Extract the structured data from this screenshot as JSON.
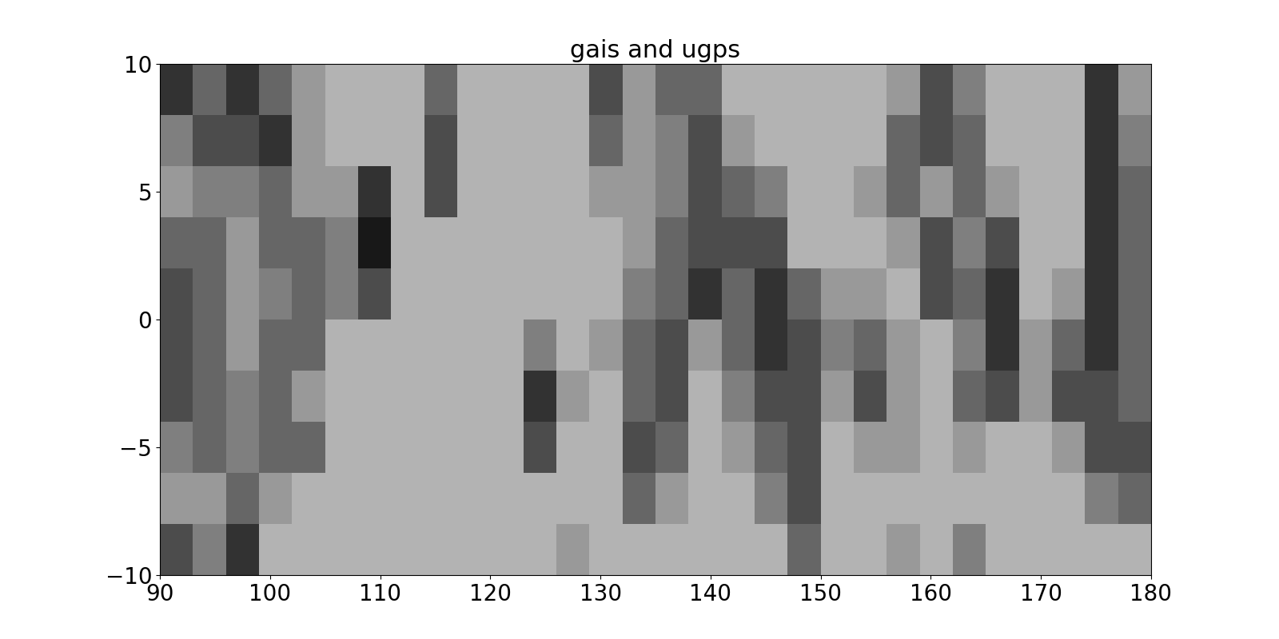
{
  "chart_data": {
    "type": "heatmap",
    "title": "gais and ugps",
    "xlim": [
      90,
      180
    ],
    "ylim": [
      -10,
      10
    ],
    "xticks": [
      90,
      100,
      110,
      120,
      130,
      140,
      150,
      160,
      170,
      180
    ],
    "yticks": [
      {
        "value": -10,
        "label": "−10"
      },
      {
        "value": -5,
        "label": "−5"
      },
      0,
      5,
      10
    ],
    "cell_range": [
      0,
      1
    ],
    "cells": [
      [
        0.8,
        0.6,
        0.8,
        0.6,
        0.4,
        0.3,
        0.3,
        0.3,
        0.6,
        0.3,
        0.3,
        0.3,
        0.3,
        0.7,
        0.4,
        0.6,
        0.6,
        0.3,
        0.3,
        0.3,
        0.3,
        0.3,
        0.4,
        0.7,
        0.5,
        0.3,
        0.3,
        0.3,
        0.8,
        0.4
      ],
      [
        0.5,
        0.7,
        0.7,
        0.8,
        0.4,
        0.3,
        0.3,
        0.3,
        0.7,
        0.3,
        0.3,
        0.3,
        0.3,
        0.6,
        0.4,
        0.5,
        0.7,
        0.4,
        0.3,
        0.3,
        0.3,
        0.3,
        0.6,
        0.7,
        0.6,
        0.3,
        0.3,
        0.3,
        0.8,
        0.5
      ],
      [
        0.4,
        0.5,
        0.5,
        0.6,
        0.4,
        0.4,
        0.8,
        0.3,
        0.7,
        0.3,
        0.3,
        0.3,
        0.3,
        0.4,
        0.4,
        0.5,
        0.7,
        0.6,
        0.5,
        0.3,
        0.3,
        0.4,
        0.6,
        0.4,
        0.6,
        0.4,
        0.3,
        0.3,
        0.8,
        0.6
      ],
      [
        0.6,
        0.6,
        0.4,
        0.6,
        0.6,
        0.5,
        0.9,
        0.3,
        0.3,
        0.3,
        0.3,
        0.3,
        0.3,
        0.3,
        0.4,
        0.6,
        0.7,
        0.7,
        0.7,
        0.3,
        0.3,
        0.3,
        0.4,
        0.7,
        0.5,
        0.7,
        0.3,
        0.3,
        0.8,
        0.6
      ],
      [
        0.7,
        0.6,
        0.4,
        0.5,
        0.6,
        0.5,
        0.7,
        0.3,
        0.3,
        0.3,
        0.3,
        0.3,
        0.3,
        0.3,
        0.5,
        0.6,
        0.8,
        0.6,
        0.8,
        0.6,
        0.4,
        0.4,
        0.3,
        0.7,
        0.6,
        0.8,
        0.3,
        0.4,
        0.8,
        0.6
      ],
      [
        0.7,
        0.6,
        0.4,
        0.6,
        0.6,
        0.3,
        0.3,
        0.3,
        0.3,
        0.3,
        0.3,
        0.5,
        0.3,
        0.4,
        0.6,
        0.7,
        0.4,
        0.6,
        0.8,
        0.7,
        0.5,
        0.6,
        0.4,
        0.3,
        0.5,
        0.8,
        0.4,
        0.6,
        0.8,
        0.6
      ],
      [
        0.7,
        0.6,
        0.5,
        0.6,
        0.4,
        0.3,
        0.3,
        0.3,
        0.3,
        0.3,
        0.3,
        0.8,
        0.4,
        0.3,
        0.6,
        0.7,
        0.3,
        0.5,
        0.7,
        0.7,
        0.4,
        0.7,
        0.4,
        0.3,
        0.6,
        0.7,
        0.4,
        0.7,
        0.7,
        0.6
      ],
      [
        0.5,
        0.6,
        0.5,
        0.6,
        0.6,
        0.3,
        0.3,
        0.3,
        0.3,
        0.3,
        0.3,
        0.7,
        0.3,
        0.3,
        0.7,
        0.6,
        0.3,
        0.4,
        0.6,
        0.7,
        0.3,
        0.4,
        0.4,
        0.3,
        0.4,
        0.3,
        0.3,
        0.4,
        0.7,
        0.7
      ],
      [
        0.4,
        0.4,
        0.6,
        0.4,
        0.3,
        0.3,
        0.3,
        0.3,
        0.3,
        0.3,
        0.3,
        0.3,
        0.3,
        0.3,
        0.6,
        0.4,
        0.3,
        0.3,
        0.5,
        0.7,
        0.3,
        0.3,
        0.3,
        0.3,
        0.3,
        0.3,
        0.3,
        0.3,
        0.5,
        0.6
      ],
      [
        0.7,
        0.5,
        0.8,
        0.3,
        0.3,
        0.3,
        0.3,
        0.3,
        0.3,
        0.3,
        0.3,
        0.3,
        0.4,
        0.3,
        0.3,
        0.3,
        0.3,
        0.3,
        0.3,
        0.6,
        0.3,
        0.3,
        0.4,
        0.3,
        0.5,
        0.3,
        0.3,
        0.3,
        0.3,
        0.3
      ]
    ]
  }
}
